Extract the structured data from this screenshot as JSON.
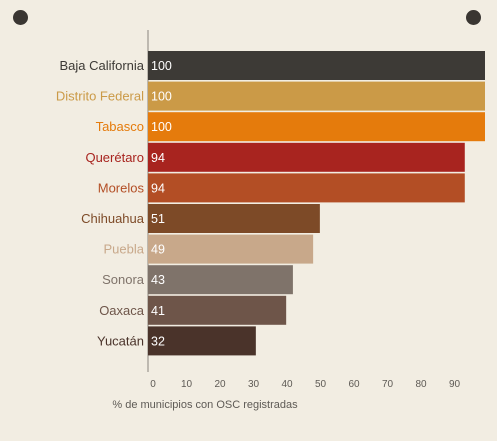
{
  "chart_data": {
    "type": "bar",
    "orientation": "horizontal",
    "categories": [
      "Baja California",
      "Distrito Federal",
      "Tabasco",
      "Querétaro",
      "Morelos",
      "Chihuahua",
      "Puebla",
      "Sonora",
      "Oaxaca",
      "Yucatán"
    ],
    "values": [
      100,
      100,
      100,
      94,
      94,
      51,
      49,
      43,
      41,
      32
    ],
    "colors": [
      "#3d3a36",
      "#cb9a47",
      "#e57b0c",
      "#a8241f",
      "#b34e25",
      "#7d4a27",
      "#c8a88a",
      "#7f736a",
      "#6e5549",
      "#4a332a"
    ],
    "xlabel": "% de municipios con OSC registradas",
    "x_ticks": [
      0,
      10,
      20,
      30,
      40,
      50,
      60,
      70,
      80,
      90
    ],
    "xlim": [
      0,
      100
    ],
    "grid": false
  }
}
